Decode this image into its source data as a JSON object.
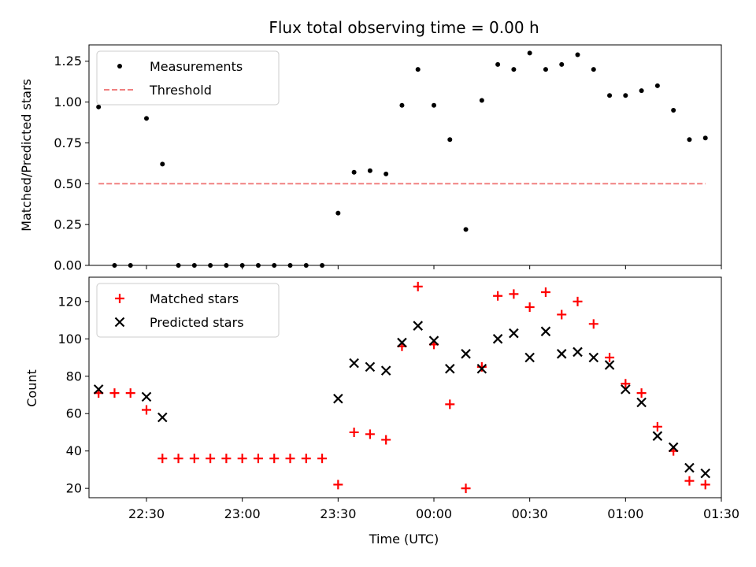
{
  "chart_data": [
    {
      "type": "scatter",
      "title": "Flux total observing time = 0.00 h",
      "xlabel": "",
      "ylabel": "Matched/Predicted stars",
      "ylim": [
        0,
        1.35
      ],
      "yticks": [
        0,
        0.25,
        0.5,
        0.75,
        1.0,
        1.25
      ],
      "ytick_labels": [
        "0.00",
        "0.25",
        "0.50",
        "0.75",
        "1.00",
        "1.25"
      ],
      "legend": "top-left",
      "grid": false,
      "series": [
        {
          "name": "Measurements",
          "marker": "dot",
          "color": "#000000",
          "x": [
            "22:15",
            "22:20",
            "22:25",
            "22:30",
            "22:35",
            "22:40",
            "22:45",
            "22:50",
            "22:55",
            "23:00",
            "23:05",
            "23:10",
            "23:15",
            "23:20",
            "23:25",
            "23:30",
            "23:35",
            "23:40",
            "23:45",
            "23:50",
            "23:55",
            "00:00",
            "00:05",
            "00:10",
            "00:15",
            "00:20",
            "00:25",
            "00:30",
            "00:35",
            "00:40",
            "00:45",
            "00:50",
            "00:55",
            "01:00",
            "01:05",
            "01:10",
            "01:15",
            "01:20",
            "01:25"
          ],
          "values": [
            0.97,
            0.0,
            0.0,
            0.9,
            0.62,
            0.0,
            0.0,
            0.0,
            0.0,
            0.0,
            0.0,
            0.0,
            0.0,
            0.0,
            0.0,
            0.32,
            0.57,
            0.58,
            0.56,
            0.98,
            1.2,
            0.98,
            0.77,
            0.22,
            1.01,
            1.23,
            1.2,
            1.3,
            1.2,
            1.23,
            1.29,
            1.2,
            1.04,
            1.04,
            1.07,
            1.1,
            0.95,
            0.77,
            0.78
          ]
        },
        {
          "name": "Threshold",
          "type": "line",
          "style": "dashed",
          "color": "#f08080",
          "x": [
            "22:15",
            "01:25"
          ],
          "values": [
            0.5,
            0.5
          ]
        }
      ]
    },
    {
      "type": "scatter",
      "title": "",
      "xlabel": "Time (UTC)",
      "ylabel": "Count",
      "ylim": [
        15,
        133
      ],
      "yticks": [
        20,
        40,
        60,
        80,
        100,
        120
      ],
      "xrange": [
        "22:12",
        "01:30"
      ],
      "xticks": [
        "22:30",
        "23:00",
        "23:30",
        "00:00",
        "00:30",
        "01:00",
        "01:30"
      ],
      "legend": "top-left",
      "grid": false,
      "series": [
        {
          "name": "Matched stars",
          "marker": "plus",
          "color": "#ff0000",
          "x": [
            "22:15",
            "22:20",
            "22:25",
            "22:30",
            "22:35",
            "22:40",
            "22:45",
            "22:50",
            "22:55",
            "23:00",
            "23:05",
            "23:10",
            "23:15",
            "23:20",
            "23:25",
            "23:30",
            "23:35",
            "23:40",
            "23:45",
            "23:50",
            "23:55",
            "00:00",
            "00:05",
            "00:10",
            "00:15",
            "00:20",
            "00:25",
            "00:30",
            "00:35",
            "00:40",
            "00:45",
            "00:50",
            "00:55",
            "01:00",
            "01:05",
            "01:10",
            "01:15",
            "01:20",
            "01:25"
          ],
          "values": [
            71,
            71,
            71,
            62,
            36,
            36,
            36,
            36,
            36,
            36,
            36,
            36,
            36,
            36,
            36,
            22,
            50,
            49,
            46,
            96,
            128,
            97,
            65,
            20,
            85,
            123,
            124,
            117,
            125,
            113,
            120,
            108,
            90,
            76,
            71,
            53,
            40,
            24,
            22
          ]
        },
        {
          "name": "Predicted stars",
          "marker": "x",
          "color": "#000000",
          "x": [
            "22:15",
            "22:30",
            "22:35",
            "23:30",
            "23:35",
            "23:40",
            "23:45",
            "23:50",
            "23:55",
            "00:00",
            "00:05",
            "00:10",
            "00:15",
            "00:20",
            "00:25",
            "00:30",
            "00:35",
            "00:40",
            "00:45",
            "00:50",
            "00:55",
            "01:00",
            "01:05",
            "01:10",
            "01:15",
            "01:20",
            "01:25"
          ],
          "values": [
            73,
            69,
            58,
            68,
            87,
            85,
            83,
            98,
            107,
            99,
            84,
            92,
            84,
            100,
            103,
            90,
            104,
            92,
            93,
            90,
            86,
            73,
            66,
            48,
            42,
            31,
            28
          ]
        }
      ]
    }
  ]
}
